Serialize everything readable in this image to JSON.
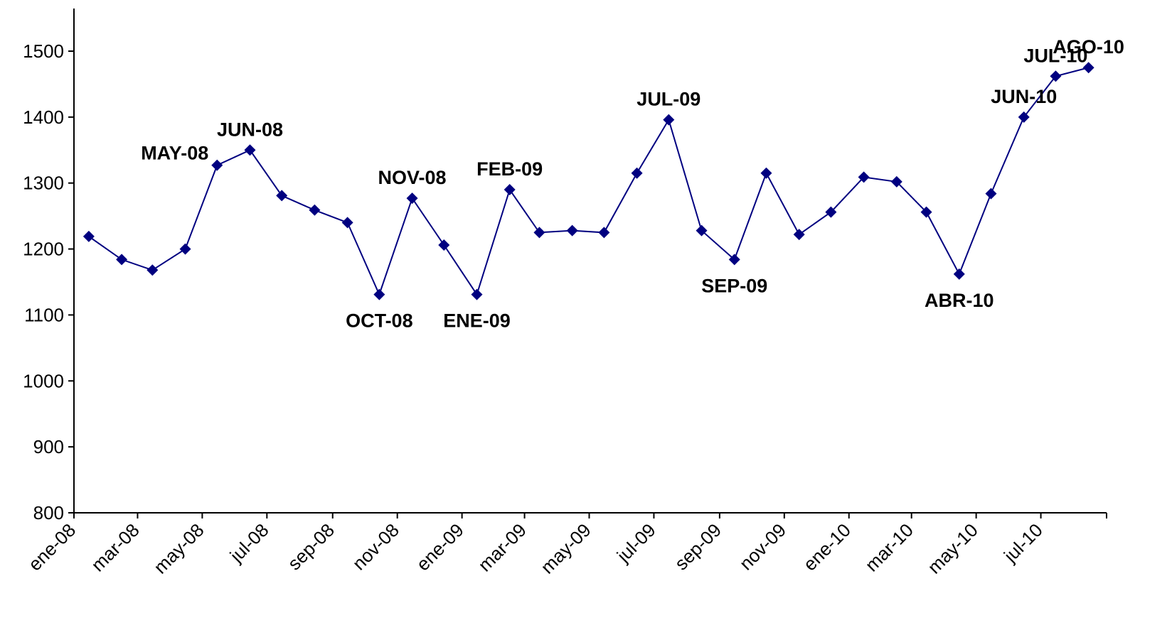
{
  "chart_data": {
    "type": "line",
    "title": "",
    "xlabel": "",
    "ylabel": "",
    "ylim": [
      800,
      1550
    ],
    "yticks": [
      800,
      900,
      1000,
      1100,
      1200,
      1300,
      1400,
      1500
    ],
    "xlim": [
      "2008-01-01",
      "2010-09-01"
    ],
    "xticks": [
      {
        "date": "2008-01-01",
        "label": "ene-08"
      },
      {
        "date": "2008-03-01",
        "label": "mar-08"
      },
      {
        "date": "2008-05-01",
        "label": "may-08"
      },
      {
        "date": "2008-07-01",
        "label": "jul-08"
      },
      {
        "date": "2008-09-01",
        "label": "sep-08"
      },
      {
        "date": "2008-11-01",
        "label": "nov-08"
      },
      {
        "date": "2009-01-01",
        "label": "ene-09"
      },
      {
        "date": "2009-03-01",
        "label": "mar-09"
      },
      {
        "date": "2009-05-01",
        "label": "may-09"
      },
      {
        "date": "2009-07-01",
        "label": "jul-09"
      },
      {
        "date": "2009-09-01",
        "label": "sep-09"
      },
      {
        "date": "2009-11-01",
        "label": "nov-09"
      },
      {
        "date": "2010-01-01",
        "label": "ene-10"
      },
      {
        "date": "2010-03-01",
        "label": "mar-10"
      },
      {
        "date": "2010-05-01",
        "label": "may-10"
      },
      {
        "date": "2010-07-01",
        "label": "jul-10"
      }
    ],
    "grid": false,
    "legend": "none",
    "series": [
      {
        "color": "#000080",
        "marker": "diamond",
        "points": [
          {
            "x": "2008-01-15",
            "y": 1219
          },
          {
            "x": "2008-02-15",
            "y": 1184
          },
          {
            "x": "2008-03-15",
            "y": 1168
          },
          {
            "x": "2008-04-15",
            "y": 1200
          },
          {
            "x": "2008-05-15",
            "y": 1327,
            "label": "MAY-08",
            "label_pos": "left"
          },
          {
            "x": "2008-06-15",
            "y": 1350,
            "label": "JUN-08",
            "label_pos": "above"
          },
          {
            "x": "2008-07-15",
            "y": 1281
          },
          {
            "x": "2008-08-15",
            "y": 1259
          },
          {
            "x": "2008-09-15",
            "y": 1240
          },
          {
            "x": "2008-10-15",
            "y": 1131,
            "label": "OCT-08",
            "label_pos": "below"
          },
          {
            "x": "2008-11-15",
            "y": 1277,
            "label": "NOV-08",
            "label_pos": "above"
          },
          {
            "x": "2008-12-15",
            "y": 1206
          },
          {
            "x": "2009-01-15",
            "y": 1131,
            "label": "ENE-09",
            "label_pos": "below"
          },
          {
            "x": "2009-02-15",
            "y": 1290,
            "label": "FEB-09",
            "label_pos": "above"
          },
          {
            "x": "2009-03-15",
            "y": 1225
          },
          {
            "x": "2009-04-15",
            "y": 1228
          },
          {
            "x": "2009-05-15",
            "y": 1225
          },
          {
            "x": "2009-06-15",
            "y": 1315
          },
          {
            "x": "2009-07-15",
            "y": 1396,
            "label": "JUL-09",
            "label_pos": "above"
          },
          {
            "x": "2009-08-15",
            "y": 1228
          },
          {
            "x": "2009-09-15",
            "y": 1184,
            "label": "SEP-09",
            "label_pos": "below"
          },
          {
            "x": "2009-10-15",
            "y": 1315
          },
          {
            "x": "2009-11-15",
            "y": 1222
          },
          {
            "x": "2009-12-15",
            "y": 1256
          },
          {
            "x": "2010-01-15",
            "y": 1309
          },
          {
            "x": "2010-02-15",
            "y": 1302
          },
          {
            "x": "2010-03-15",
            "y": 1256
          },
          {
            "x": "2010-04-15",
            "y": 1162,
            "label": "ABR-10",
            "label_pos": "below"
          },
          {
            "x": "2010-05-15",
            "y": 1284
          },
          {
            "x": "2010-06-15",
            "y": 1400,
            "label": "JUN-10",
            "label_pos": "above"
          },
          {
            "x": "2010-07-15",
            "y": 1462,
            "label": "JUL-10",
            "label_pos": "above"
          },
          {
            "x": "2010-08-15",
            "y": 1475,
            "label": "AGO-10",
            "label_pos": "above"
          }
        ]
      }
    ]
  }
}
